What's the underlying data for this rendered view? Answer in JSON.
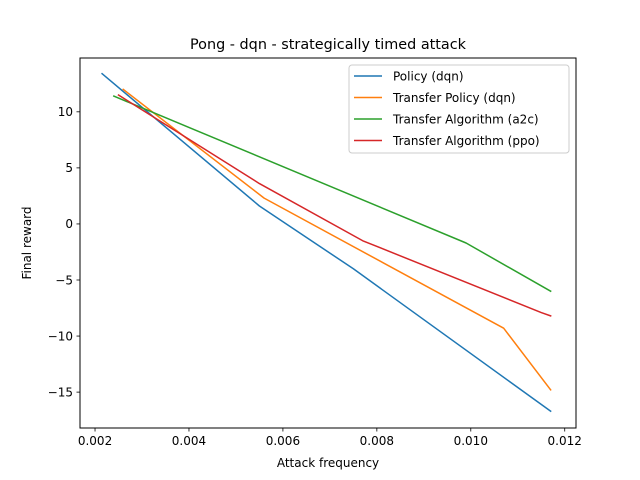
{
  "chart_data": {
    "type": "line",
    "title": "Pong - dqn - strategically timed attack",
    "xlabel": "Attack frequency",
    "ylabel": "Final reward",
    "xlim": [
      0.00168,
      0.01224
    ],
    "ylim": [
      -18.2,
      14.8
    ],
    "xticks": [
      0.002,
      0.004,
      0.006,
      0.008,
      0.01,
      0.012
    ],
    "xtick_labels": [
      "0.002",
      "0.004",
      "0.006",
      "0.008",
      "0.010",
      "0.012"
    ],
    "yticks": [
      -15,
      -10,
      -5,
      0,
      5,
      10
    ],
    "ytick_labels": [
      "−15",
      "−10",
      "−5",
      "0",
      "5",
      "10"
    ],
    "grid": false,
    "legend_position": "top-right",
    "series": [
      {
        "name": "Policy (dqn)",
        "color": "#1f77b4",
        "x": [
          0.00215,
          0.0055,
          0.0075,
          0.0117
        ],
        "y": [
          13.4,
          1.6,
          -4.0,
          -16.7
        ]
      },
      {
        "name": "Transfer Policy (dqn)",
        "color": "#ff7f0e",
        "x": [
          0.0026,
          0.0056,
          0.0107,
          0.0117
        ],
        "y": [
          12.0,
          2.3,
          -9.3,
          -14.8
        ]
      },
      {
        "name": "Transfer Algorithm (a2c)",
        "color": "#2ca02c",
        "x": [
          0.0024,
          0.0099,
          0.0117
        ],
        "y": [
          11.4,
          -1.7,
          -6.0
        ]
      },
      {
        "name": "Transfer Algorithm (ppo)",
        "color": "#d62728",
        "x": [
          0.0025,
          0.0055,
          0.0077,
          0.0115,
          0.0117
        ],
        "y": [
          11.5,
          3.6,
          -1.5,
          -7.9,
          -8.2
        ]
      }
    ]
  }
}
